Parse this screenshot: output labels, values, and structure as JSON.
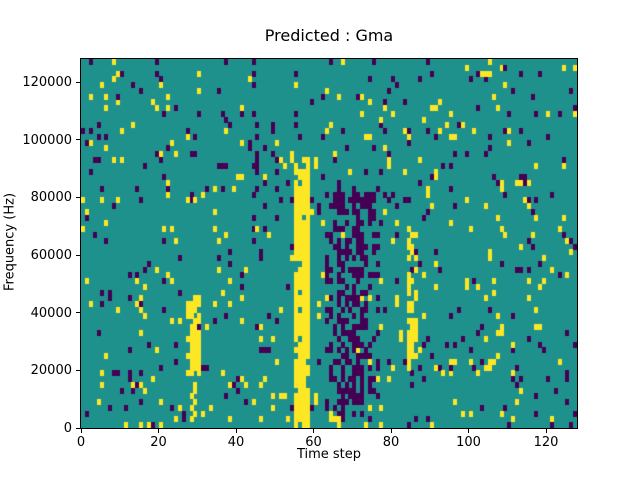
{
  "chart_data": {
    "type": "heatmap",
    "title": "Predicted : Gma",
    "xlabel": "Time step",
    "ylabel": "Frequency (Hz)",
    "xlim": [
      0,
      128
    ],
    "ylim": [
      0,
      128000
    ],
    "x_ticks": [
      0,
      20,
      40,
      60,
      80,
      100,
      120
    ],
    "y_ticks": [
      0,
      20000,
      40000,
      60000,
      80000,
      100000,
      120000
    ],
    "grid": {
      "cols": 128,
      "rows": 64
    },
    "legend": "none",
    "colors": {
      "background": "#1f918d",
      "yellow": "#fde725",
      "dark": "#440154",
      "axes": "#000000",
      "figure_background": "#ffffff"
    },
    "noise": {
      "seed": 1337,
      "yellow_density": 0.035,
      "dark_density": 0.035
    },
    "features": [
      {
        "name": "main-yellow-band",
        "color": "yellow",
        "x0": 55,
        "x1": 58,
        "y0": 0,
        "y1": 44,
        "density": 0.92
      },
      {
        "name": "main-yellow-band-top",
        "color": "yellow",
        "x0": 55,
        "x1": 58,
        "y0": 45,
        "y1": 47,
        "density": 0.35
      },
      {
        "name": "dark-cluster",
        "color": "dark",
        "x0": 63,
        "x1": 76,
        "y0": 2,
        "y1": 40,
        "density": 0.3
      },
      {
        "name": "dark-column-1",
        "color": "dark",
        "x0": 66,
        "x1": 67,
        "y0": 1,
        "y1": 42,
        "density": 0.55
      },
      {
        "name": "dark-column-2",
        "color": "dark",
        "x0": 70,
        "x1": 72,
        "y0": 4,
        "y1": 41,
        "density": 0.5
      },
      {
        "name": "yellow-blob",
        "color": "yellow",
        "x0": 27,
        "x1": 30,
        "y0": 9,
        "y1": 22,
        "density": 0.75
      },
      {
        "name": "yellow-blob-tail",
        "color": "yellow",
        "x0": 28,
        "x1": 29,
        "y0": 1,
        "y1": 9,
        "density": 0.35
      },
      {
        "name": "yellow-streak-right",
        "color": "yellow",
        "x0": 84,
        "x1": 86,
        "y0": 10,
        "y1": 34,
        "density": 0.5
      },
      {
        "name": "bottom-yellow-notch",
        "color": "yellow",
        "x0": 64,
        "x1": 66,
        "y0": 0,
        "y1": 2,
        "density": 0.45
      },
      {
        "name": "upper-dark-scatter",
        "color": "dark",
        "x0": 44,
        "x1": 51,
        "y0": 36,
        "y1": 48,
        "density": 0.15
      },
      {
        "name": "right-yellow-scatter",
        "color": "yellow",
        "x0": 104,
        "x1": 108,
        "y0": 8,
        "y1": 30,
        "density": 0.12
      }
    ]
  }
}
